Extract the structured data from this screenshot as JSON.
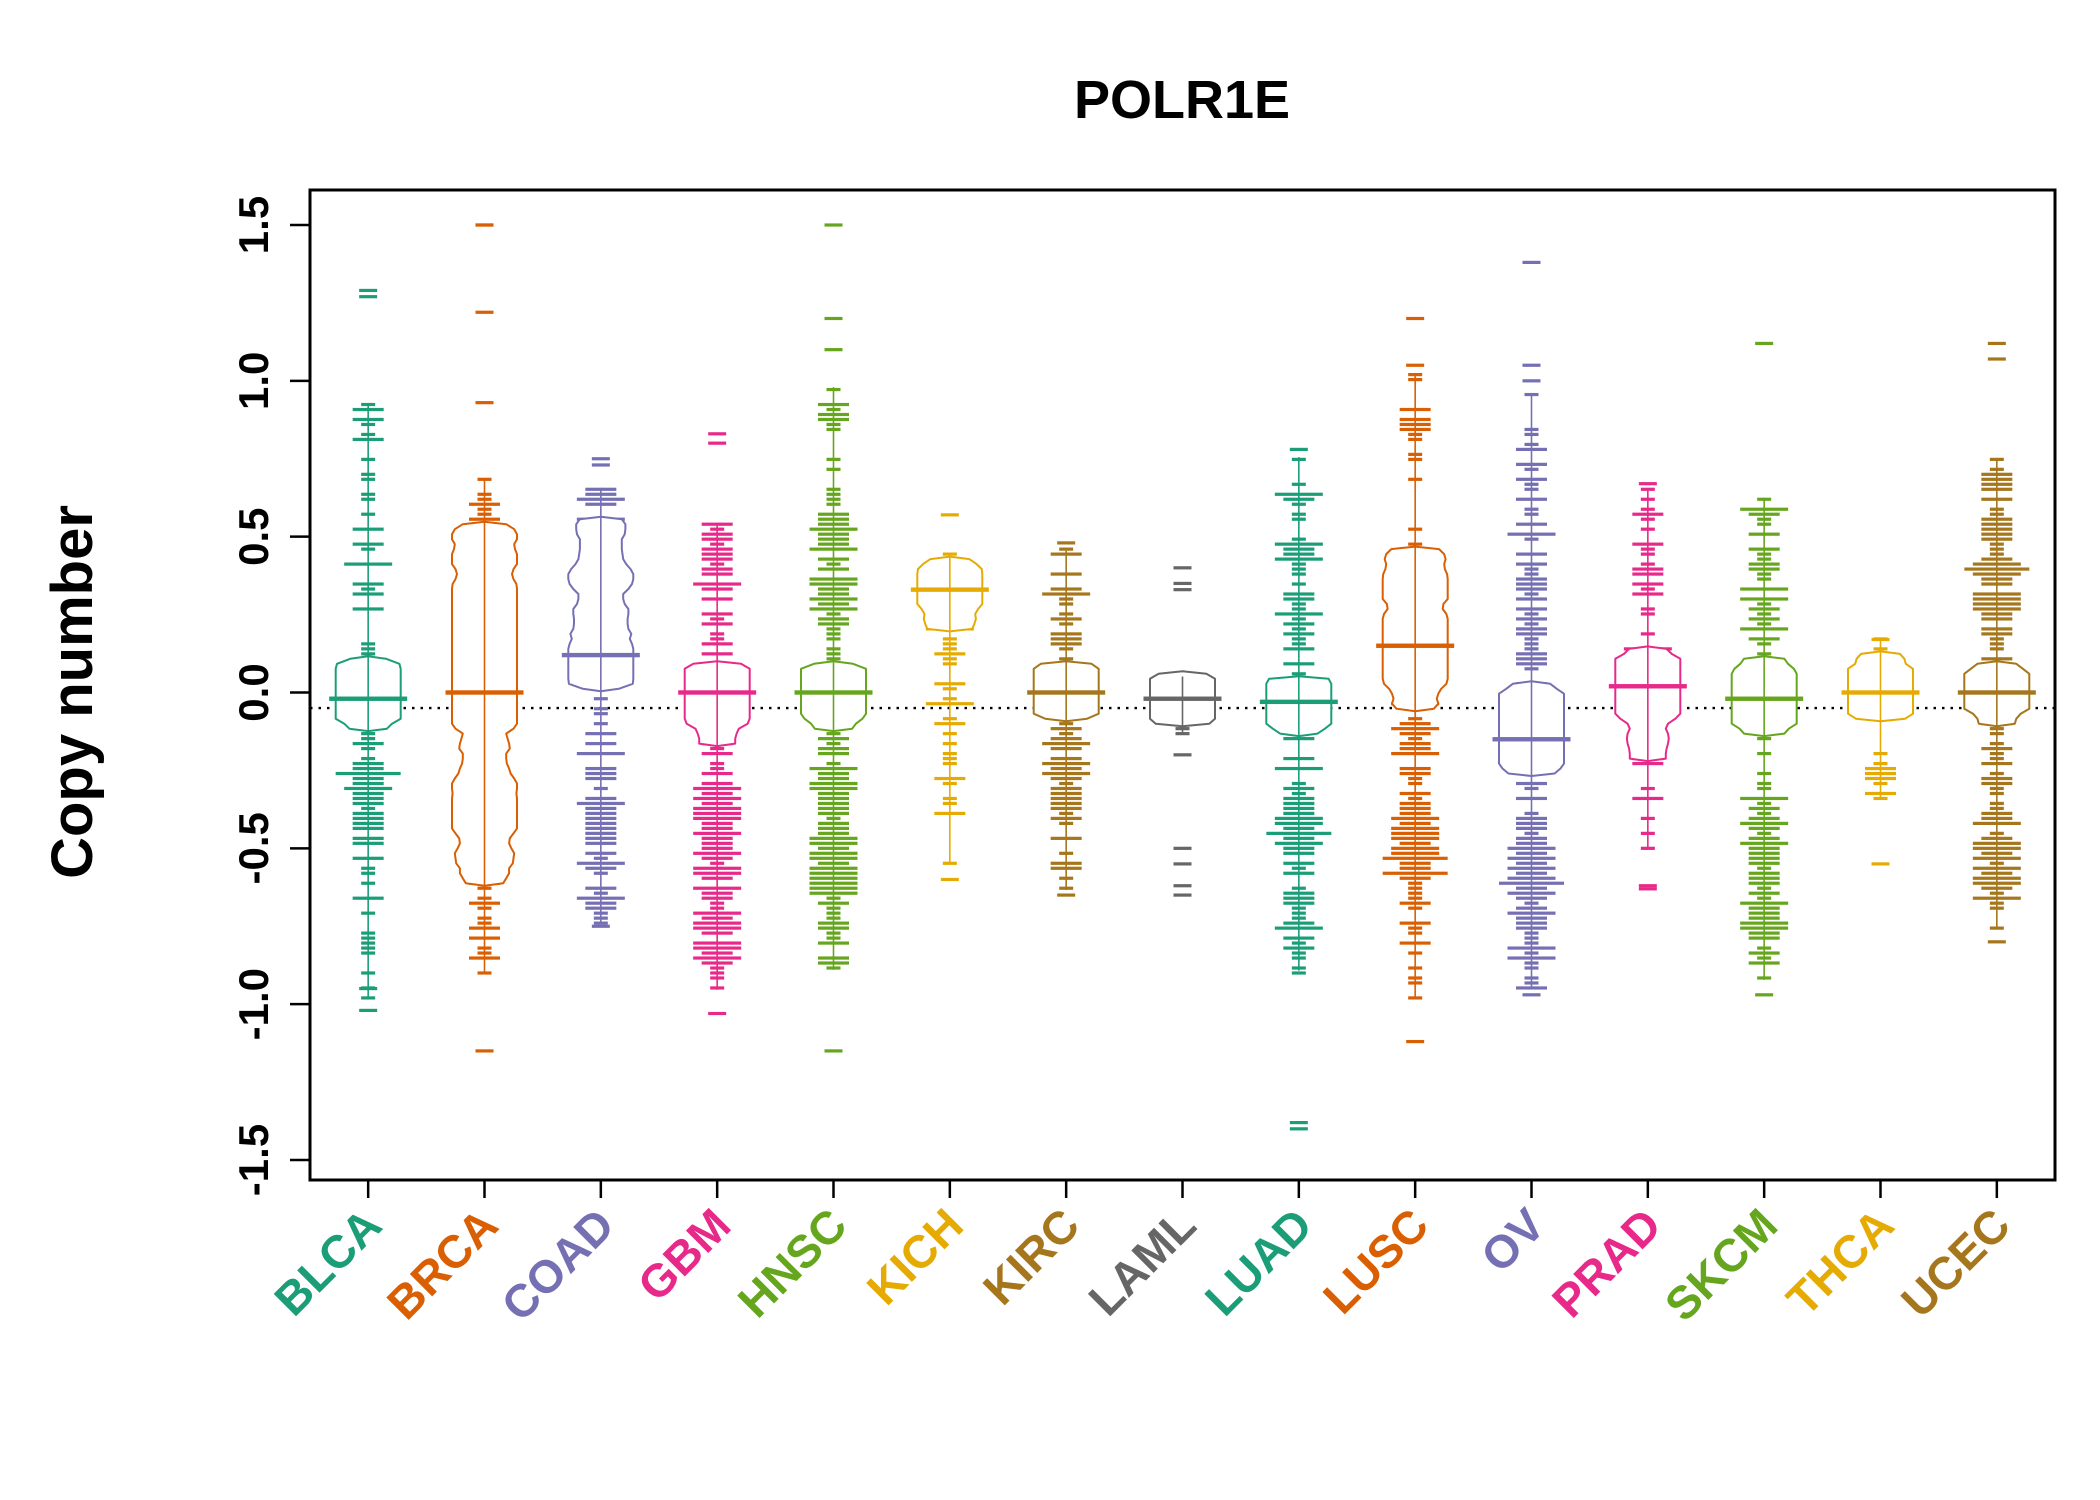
{
  "chart_data": {
    "type": "beanplot",
    "title": "POLR1E",
    "ylabel": "Copy number",
    "ylim": [
      -1.5,
      1.5
    ],
    "yticks": [
      -1.5,
      -1.0,
      -0.5,
      0.0,
      0.5,
      1.0,
      1.5
    ],
    "ytick_labels": [
      "-1.5",
      "-1.0",
      "-0.5",
      "0.0",
      "0.5",
      "1.0",
      "1.5"
    ],
    "overall_line_y": -0.05,
    "grid": false,
    "legend": "none",
    "background": "#FFFFFF",
    "axis_color": "#000000",
    "categories": [
      {
        "name": "BLCA",
        "color": "#1B9E77",
        "median": -0.02,
        "range": [
          -1.02,
          1.29
        ],
        "clusters": [
          [
            0.0,
            0.05,
            120
          ],
          [
            -0.3,
            0.1,
            50
          ],
          [
            0.45,
            0.22,
            30
          ],
          [
            -0.65,
            0.15,
            18
          ],
          [
            0.85,
            0.04,
            8
          ]
        ],
        "outliers": [
          1.29,
          1.27,
          -0.95,
          -1.02
        ]
      },
      {
        "name": "BRCA",
        "color": "#D95F02",
        "median": 0.0,
        "range": [
          -1.15,
          1.5
        ],
        "clusters": [
          [
            0.0,
            0.04,
            250
          ],
          [
            0.4,
            0.13,
            90
          ],
          [
            -0.45,
            0.1,
            80
          ],
          [
            0.15,
            0.08,
            60
          ],
          [
            -0.2,
            0.08,
            40
          ],
          [
            -0.8,
            0.08,
            12
          ]
        ],
        "outliers": [
          1.5,
          1.5,
          1.22,
          0.93,
          -1.15
        ]
      },
      {
        "name": "COAD",
        "color": "#7570B3",
        "median": 0.12,
        "range": [
          -0.75,
          0.75
        ],
        "clusters": [
          [
            0.1,
            0.05,
            70
          ],
          [
            0.35,
            0.12,
            60
          ],
          [
            -0.4,
            0.14,
            60
          ],
          [
            0.6,
            0.07,
            15
          ],
          [
            -0.68,
            0.04,
            10
          ]
        ],
        "outliers": [
          0.75,
          0.73,
          -0.75
        ]
      },
      {
        "name": "GBM",
        "color": "#E7298A",
        "median": 0.0,
        "range": [
          -1.03,
          0.83
        ],
        "clusters": [
          [
            0.0,
            0.05,
            110
          ],
          [
            0.45,
            0.06,
            25
          ],
          [
            -0.45,
            0.2,
            100
          ],
          [
            -0.75,
            0.1,
            40
          ],
          [
            0.25,
            0.1,
            20
          ]
        ],
        "outliers": [
          0.83,
          0.8,
          -1.03
        ]
      },
      {
        "name": "HNSC",
        "color": "#66A61E",
        "median": 0.0,
        "range": [
          -1.15,
          1.5
        ],
        "clusters": [
          [
            0.0,
            0.05,
            100
          ],
          [
            0.4,
            0.15,
            70
          ],
          [
            -0.55,
            0.1,
            80
          ],
          [
            -0.25,
            0.1,
            30
          ],
          [
            0.9,
            0.04,
            10
          ],
          [
            -0.8,
            0.06,
            15
          ]
        ],
        "outliers": [
          1.5,
          1.2,
          1.1,
          -1.15
        ]
      },
      {
        "name": "KICH",
        "color": "#E6AB02",
        "median": 0.33,
        "range": [
          -0.6,
          0.57
        ],
        "clusters": [
          [
            0.33,
            0.06,
            60
          ],
          [
            0.12,
            0.06,
            10
          ],
          [
            -0.3,
            0.15,
            18
          ],
          [
            0.0,
            0.03,
            8
          ]
        ],
        "outliers": [
          0.57,
          -0.6
        ]
      },
      {
        "name": "KIRC",
        "color": "#A6761D",
        "median": 0.0,
        "range": [
          -0.65,
          0.48
        ],
        "clusters": [
          [
            0.0,
            0.035,
            150
          ],
          [
            -0.25,
            0.08,
            50
          ],
          [
            0.2,
            0.1,
            25
          ],
          [
            -0.55,
            0.06,
            12
          ],
          [
            0.4,
            0.04,
            8
          ]
        ],
        "outliers": [
          0.48,
          -0.65
        ]
      },
      {
        "name": "LAML",
        "color": "#666666",
        "median": -0.02,
        "range": [
          -0.65,
          0.4
        ],
        "clusters": [
          [
            -0.02,
            0.035,
            130
          ]
        ],
        "outliers": [
          0.4,
          0.35,
          0.33,
          -0.2,
          -0.5,
          -0.55,
          -0.62,
          -0.65
        ]
      },
      {
        "name": "LUAD",
        "color": "#1B9E77",
        "median": -0.03,
        "range": [
          -1.4,
          0.78
        ],
        "clusters": [
          [
            -0.03,
            0.04,
            130
          ],
          [
            0.3,
            0.15,
            50
          ],
          [
            -0.4,
            0.15,
            70
          ],
          [
            -0.75,
            0.08,
            20
          ],
          [
            0.65,
            0.03,
            8
          ]
        ],
        "outliers": [
          0.78,
          -1.38,
          -1.4
        ]
      },
      {
        "name": "LUSC",
        "color": "#D95F02",
        "median": 0.15,
        "range": [
          -1.12,
          1.2
        ],
        "clusters": [
          [
            0.3,
            0.12,
            90
          ],
          [
            -0.5,
            0.09,
            80
          ],
          [
            0.05,
            0.06,
            40
          ],
          [
            -0.2,
            0.1,
            30
          ],
          [
            0.85,
            0.08,
            15
          ],
          [
            -0.8,
            0.07,
            12
          ]
        ],
        "outliers": [
          1.2,
          1.05,
          -1.12
        ]
      },
      {
        "name": "OV",
        "color": "#7570B3",
        "median": -0.15,
        "range": [
          -0.97,
          1.38
        ],
        "clusters": [
          [
            -0.12,
            0.07,
            120
          ],
          [
            -0.6,
            0.12,
            80
          ],
          [
            0.55,
            0.15,
            40
          ],
          [
            0.2,
            0.1,
            30
          ],
          [
            -0.85,
            0.05,
            15
          ]
        ],
        "outliers": [
          1.38,
          1.05,
          1.0,
          -0.97
        ]
      },
      {
        "name": "PRAD",
        "color": "#E7298A",
        "median": 0.02,
        "range": [
          -0.63,
          0.67
        ],
        "clusters": [
          [
            0.02,
            0.05,
            160
          ],
          [
            0.3,
            0.12,
            25
          ],
          [
            -0.25,
            0.1,
            25
          ],
          [
            0.6,
            0.04,
            8
          ]
        ],
        "outliers": [
          0.67,
          -0.62,
          -0.63
        ]
      },
      {
        "name": "SKCM",
        "color": "#66A61E",
        "median": -0.02,
        "range": [
          -0.97,
          1.12
        ],
        "clusters": [
          [
            -0.02,
            0.06,
            90
          ],
          [
            0.25,
            0.12,
            40
          ],
          [
            -0.7,
            0.13,
            60
          ],
          [
            -0.35,
            0.1,
            30
          ],
          [
            0.55,
            0.04,
            10
          ]
        ],
        "outliers": [
          1.12,
          -0.97
        ]
      },
      {
        "name": "THCA",
        "color": "#E6AB02",
        "median": 0.0,
        "range": [
          -0.55,
          0.17
        ],
        "clusters": [
          [
            0.0,
            0.03,
            200
          ],
          [
            -0.3,
            0.1,
            12
          ],
          [
            0.12,
            0.03,
            10
          ]
        ],
        "outliers": [
          0.17,
          -0.55
        ]
      },
      {
        "name": "UCEC",
        "color": "#A6761D",
        "median": 0.0,
        "range": [
          -0.8,
          1.12
        ],
        "clusters": [
          [
            0.0,
            0.04,
            60
          ],
          [
            0.35,
            0.12,
            80
          ],
          [
            -0.55,
            0.1,
            70
          ],
          [
            0.7,
            0.05,
            10
          ],
          [
            -0.2,
            0.08,
            20
          ]
        ],
        "outliers": [
          1.12,
          1.07,
          -0.8
        ]
      }
    ]
  }
}
